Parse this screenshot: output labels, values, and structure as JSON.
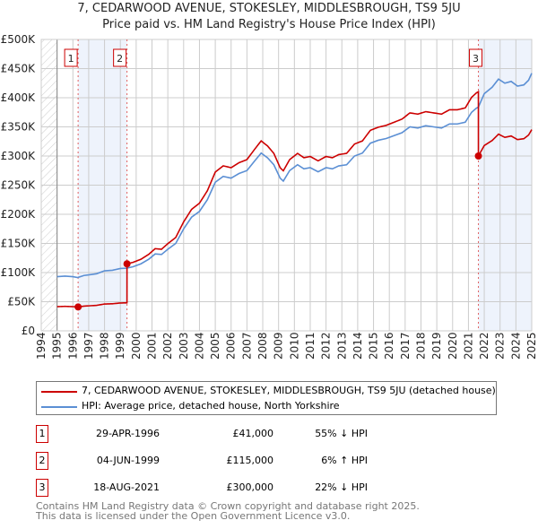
{
  "chart_data": {
    "type": "line",
    "title": "7, CEDARWOOD AVENUE, STOKESLEY, MIDDLESBROUGH, TS9 5JU",
    "subtitle": "Price paid vs. HM Land Registry's House Price Index (HPI)",
    "xlim": [
      1994,
      2025
    ],
    "ylim": [
      0,
      500000
    ],
    "x_ticks": [
      "1994",
      "1995",
      "1996",
      "1997",
      "1998",
      "1999",
      "2000",
      "2001",
      "2002",
      "2003",
      "2004",
      "2005",
      "2006",
      "2007",
      "2008",
      "2009",
      "2010",
      "2011",
      "2012",
      "2013",
      "2014",
      "2015",
      "2016",
      "2017",
      "2018",
      "2019",
      "2020",
      "2021",
      "2022",
      "2023",
      "2024",
      "2025"
    ],
    "y_ticks": [
      {
        "v": 0,
        "label": "£0"
      },
      {
        "v": 50000,
        "label": "£50K"
      },
      {
        "v": 100000,
        "label": "£100K"
      },
      {
        "v": 150000,
        "label": "£150K"
      },
      {
        "v": 200000,
        "label": "£200K"
      },
      {
        "v": 250000,
        "label": "£250K"
      },
      {
        "v": 300000,
        "label": "£300K"
      },
      {
        "v": 350000,
        "label": "£350K"
      },
      {
        "v": 400000,
        "label": "£400K"
      },
      {
        "v": 450000,
        "label": "£450K"
      },
      {
        "v": 500000,
        "label": "£500K"
      }
    ],
    "grid": true,
    "hpi_series": {
      "name": "HPI: Average price, detached house, North Yorkshire",
      "color": "#5b8fd4",
      "x": [
        1995,
        1995.5,
        1996,
        1996.3,
        1996.7,
        1997,
        1997.5,
        1998,
        1998.5,
        1999,
        1999.4,
        1999.8,
        2000.3,
        2000.8,
        2001.2,
        2001.6,
        2002,
        2002.5,
        2003,
        2003.5,
        2004,
        2004.5,
        2005,
        2005.5,
        2006,
        2006.5,
        2007,
        2007.5,
        2007.9,
        2008.3,
        2008.7,
        2009.1,
        2009.3,
        2009.7,
        2010.2,
        2010.6,
        2011,
        2011.5,
        2012,
        2012.4,
        2012.8,
        2013.3,
        2013.8,
        2014.3,
        2014.8,
        2015.3,
        2015.8,
        2016.3,
        2016.8,
        2017.3,
        2017.8,
        2018.3,
        2018.8,
        2019.3,
        2019.8,
        2020.3,
        2020.8,
        2021.2,
        2021.5,
        2021.63,
        2022,
        2022.5,
        2022.9,
        2023.3,
        2023.7,
        2024.1,
        2024.5,
        2024.8,
        2025
      ],
      "y": [
        93000,
        94000,
        93000,
        91500,
        95000,
        96000,
        98000,
        103000,
        104000,
        107000,
        107500,
        110000,
        115000,
        123000,
        132000,
        131000,
        140000,
        150000,
        175000,
        195000,
        205000,
        225000,
        255000,
        265000,
        262000,
        270000,
        275000,
        292000,
        305000,
        297000,
        285000,
        262000,
        257000,
        275000,
        285000,
        278000,
        280000,
        273000,
        280000,
        278000,
        283000,
        285000,
        300000,
        305000,
        322000,
        327000,
        330000,
        335000,
        340000,
        350000,
        348000,
        352000,
        350000,
        348000,
        355000,
        355000,
        358000,
        375000,
        382000,
        384000,
        407000,
        418000,
        432000,
        425000,
        428000,
        420000,
        422000,
        430000,
        442000
      ]
    },
    "price_series": {
      "name": "7, CEDARWOOD AVENUE, STOKESLEY, MIDDLESBROUGH, TS9 5JU (detached house)",
      "color": "#cc0000"
    },
    "sales": [
      {
        "id": "1",
        "x": 1996.33,
        "date": "29-APR-1996",
        "price": 41000,
        "price_label": "£41,000",
        "hpi_diff": "55% ↓ HPI"
      },
      {
        "id": "2",
        "x": 1999.42,
        "date": "04-JUN-1999",
        "price": 115000,
        "price_label": "£115,000",
        "hpi_diff": "6% ↑ HPI"
      },
      {
        "id": "3",
        "x": 2021.63,
        "date": "18-AUG-2021",
        "price": 300000,
        "price_label": "£300,000",
        "hpi_diff": "22% ↓ HPI"
      }
    ]
  },
  "footer": {
    "line1": "Contains HM Land Registry data © Crown copyright and database right 2025.",
    "line2": "This data is licensed under the Open Government Licence v3.0."
  }
}
